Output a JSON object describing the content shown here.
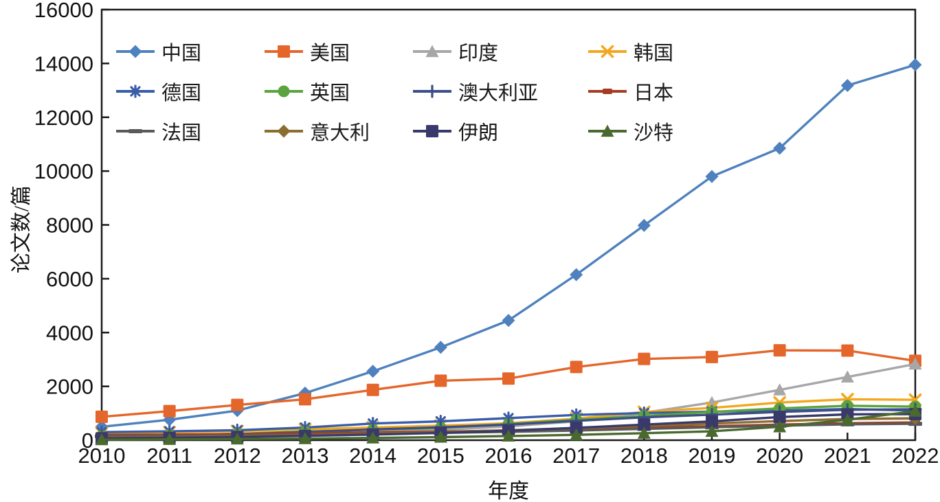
{
  "figure": {
    "background": "#ffffff",
    "frame_color": "#1a1a1a",
    "text_color": "#111111"
  },
  "axes": {
    "x_title": "年度",
    "y_title": "论文数/篇",
    "y_ticks": [
      0,
      2000,
      4000,
      6000,
      8000,
      10000,
      12000,
      14000,
      16000
    ],
    "x_categories": [
      "2010",
      "2011",
      "2012",
      "2013",
      "2014",
      "2015",
      "2016",
      "2017",
      "2018",
      "2019",
      "2020",
      "2021",
      "2022"
    ]
  },
  "chart_data": {
    "type": "line",
    "title": "",
    "xlabel": "年度",
    "ylabel": "论文数/篇",
    "ylim": [
      0,
      16000
    ],
    "grid": false,
    "legend_position": "top-left-inside",
    "categories": [
      2010,
      2011,
      2012,
      2013,
      2014,
      2015,
      2016,
      2017,
      2018,
      2019,
      2020,
      2021,
      2022
    ],
    "series": [
      {
        "name": "中国",
        "key": "china",
        "color": "#4e81bd",
        "marker": "diamond",
        "values": [
          500,
          760,
          1100,
          1750,
          2560,
          3450,
          4450,
          6150,
          7980,
          9800,
          10850,
          13180,
          13950
        ]
      },
      {
        "name": "美国",
        "key": "usa",
        "color": "#e4662b",
        "marker": "square",
        "values": [
          870,
          1080,
          1310,
          1520,
          1870,
          2210,
          2290,
          2720,
          3020,
          3090,
          3340,
          3330,
          2950
        ]
      },
      {
        "name": "印度",
        "key": "india",
        "color": "#a7a7a7",
        "marker": "triangle",
        "values": [
          80,
          110,
          150,
          220,
          300,
          390,
          510,
          700,
          1020,
          1400,
          1870,
          2350,
          2830
        ]
      },
      {
        "name": "韩国",
        "key": "korea",
        "color": "#f3a71f",
        "marker": "x",
        "values": [
          260,
          300,
          340,
          410,
          470,
          540,
          630,
          800,
          1050,
          1200,
          1400,
          1520,
          1500
        ]
      },
      {
        "name": "德国",
        "key": "germany",
        "color": "#3a5da8",
        "marker": "asterisk",
        "values": [
          300,
          330,
          370,
          470,
          620,
          700,
          820,
          940,
          1010,
          1060,
          1100,
          1160,
          1100
        ]
      },
      {
        "name": "英国",
        "key": "uk",
        "color": "#5ba33c",
        "marker": "circle",
        "values": [
          160,
          190,
          240,
          320,
          390,
          460,
          600,
          760,
          900,
          1050,
          1180,
          1280,
          1250
        ]
      },
      {
        "name": "澳大利亚",
        "key": "australia",
        "color": "#3d4e86",
        "marker": "plus",
        "values": [
          150,
          180,
          220,
          300,
          400,
          480,
          580,
          720,
          850,
          950,
          1050,
          1130,
          1150
        ]
      },
      {
        "name": "日本",
        "key": "japan",
        "color": "#a53d23",
        "marker": "sdash",
        "values": [
          200,
          210,
          230,
          260,
          290,
          320,
          360,
          410,
          470,
          520,
          580,
          630,
          660
        ]
      },
      {
        "name": "法国",
        "key": "france",
        "color": "#5a5a5a",
        "marker": "dash",
        "values": [
          150,
          160,
          180,
          210,
          240,
          270,
          310,
          360,
          420,
          480,
          540,
          590,
          610
        ]
      },
      {
        "name": "意大利",
        "key": "italy",
        "color": "#8b6d2f",
        "marker": "diamond",
        "values": [
          100,
          120,
          150,
          190,
          240,
          300,
          370,
          450,
          530,
          620,
          710,
          790,
          810
        ]
      },
      {
        "name": "伊朗",
        "key": "iran",
        "color": "#39396b",
        "marker": "square",
        "values": [
          70,
          90,
          120,
          160,
          210,
          270,
          350,
          460,
          580,
          700,
          860,
          960,
          970
        ]
      },
      {
        "name": "沙特",
        "key": "saudi",
        "color": "#4a692e",
        "marker": "triangle",
        "values": [
          20,
          30,
          45,
          60,
          85,
          115,
          155,
          200,
          260,
          330,
          500,
          760,
          1080
        ]
      }
    ]
  }
}
